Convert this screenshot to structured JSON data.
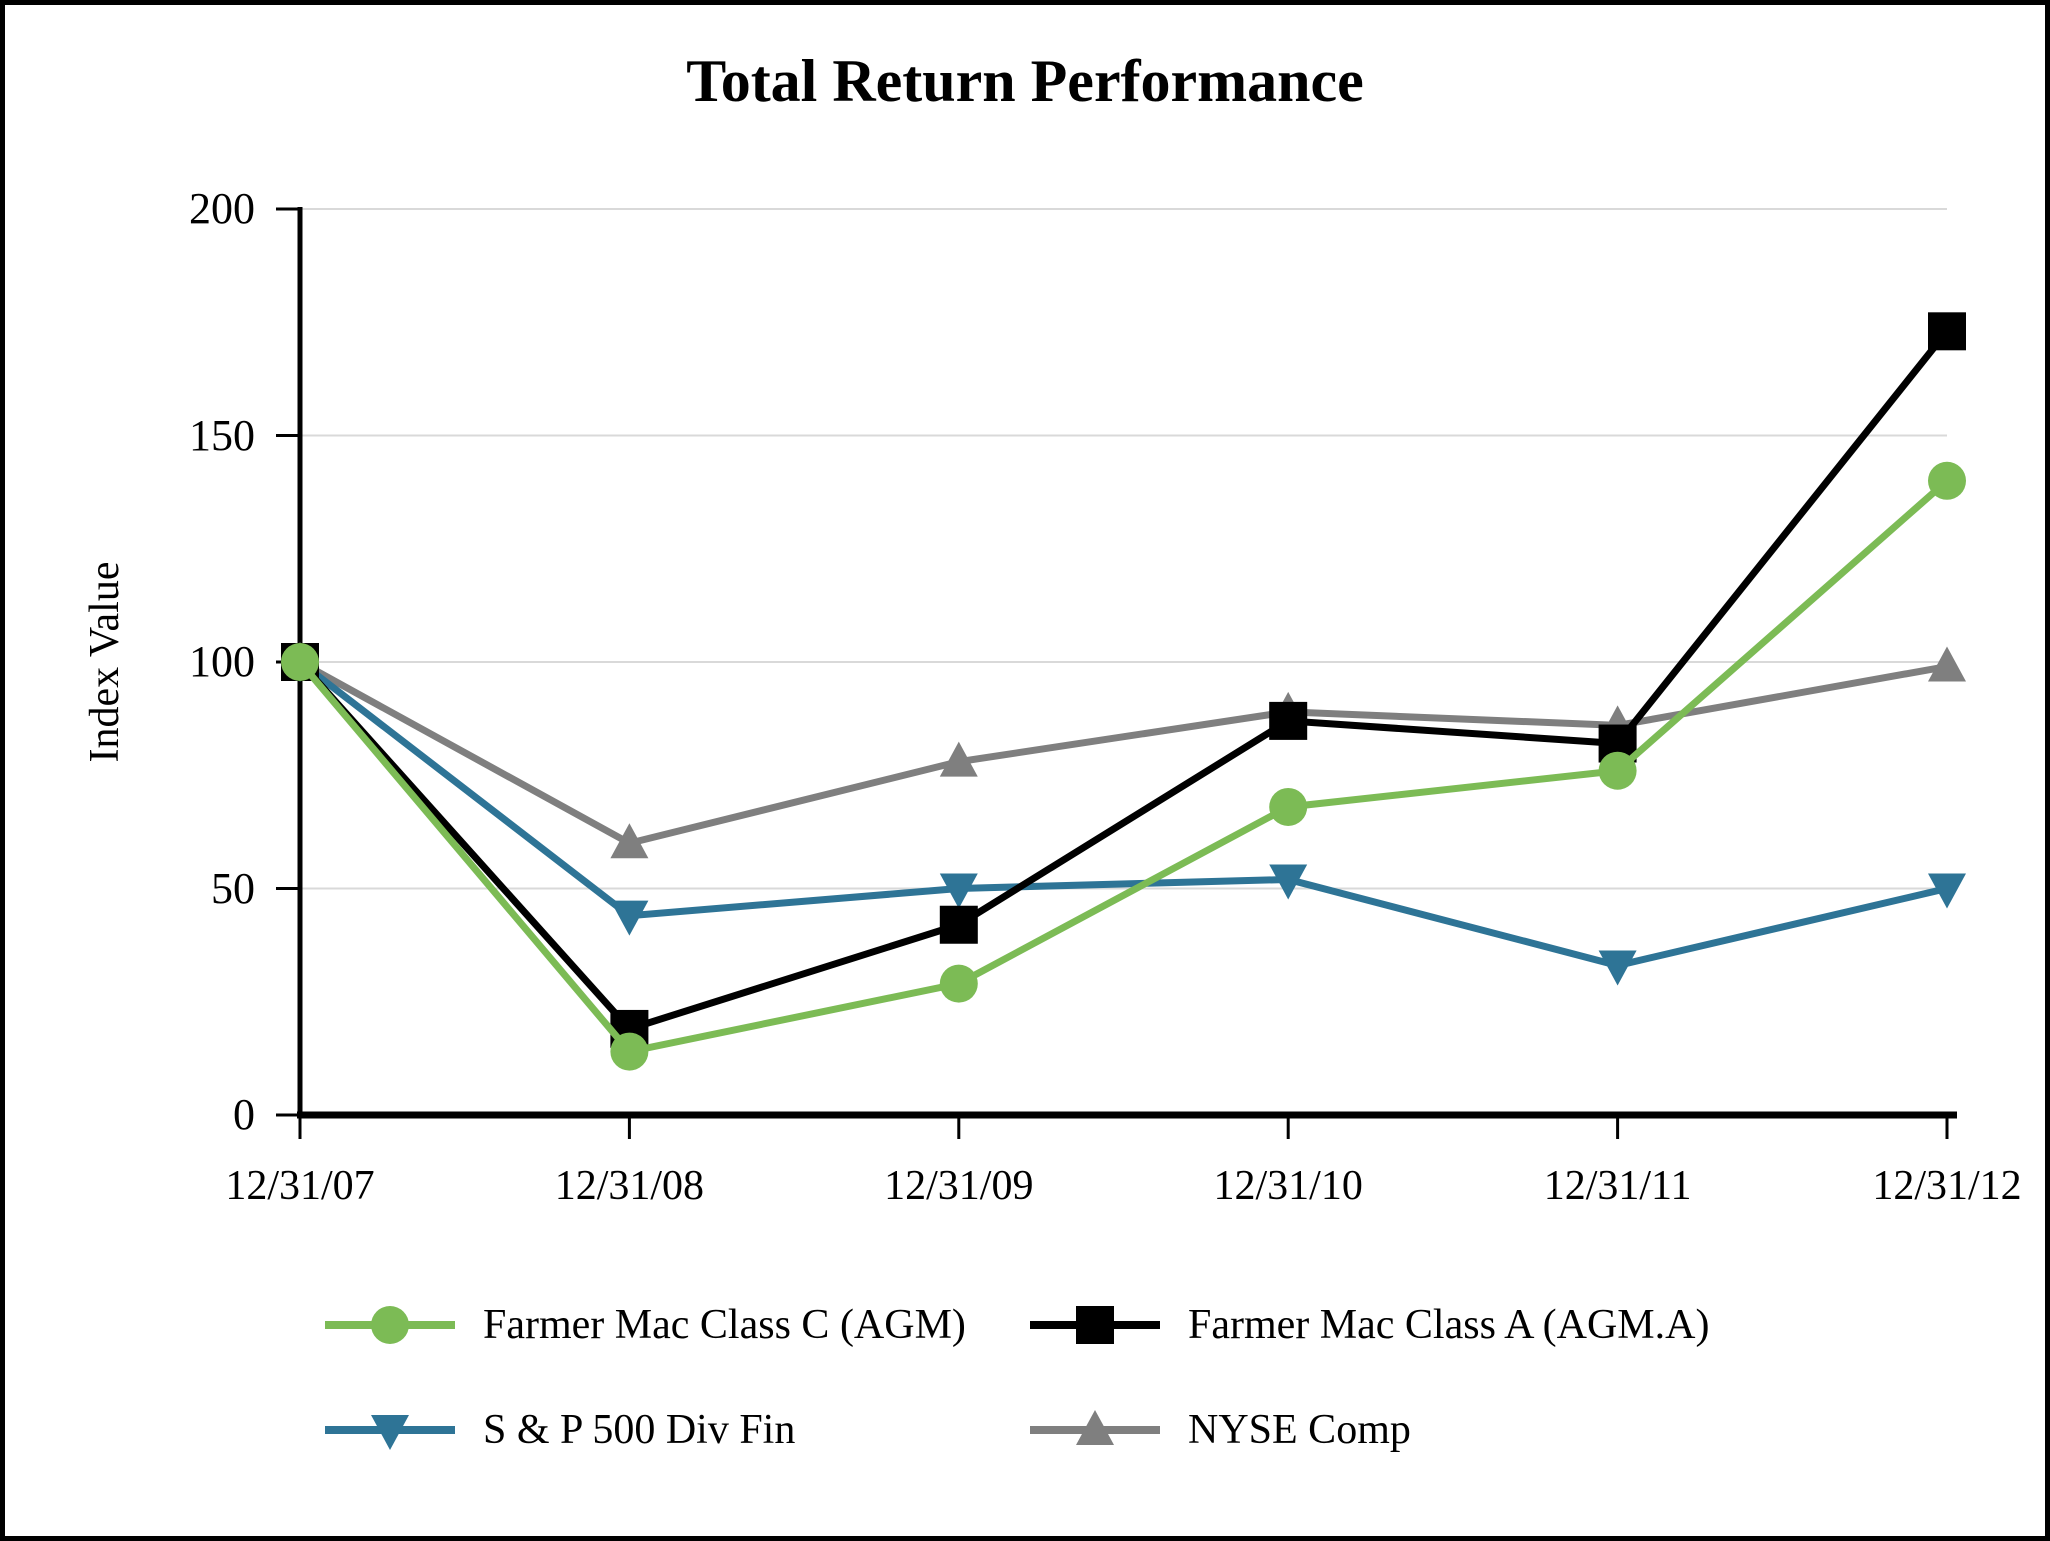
{
  "page": {
    "border_color": "#000000",
    "background_color": "#FFFFFF"
  },
  "chart_data": {
    "type": "line",
    "title": "Total Return Performance",
    "xlabel": "",
    "ylabel": "Index Value",
    "ylim": [
      0,
      200
    ],
    "y_ticks": [
      0,
      50,
      100,
      150,
      200
    ],
    "grid": true,
    "gridline_color": "#D9D9D9",
    "axis_color": "#000000",
    "legend_position": "bottom",
    "categories": [
      "12/31/07",
      "12/31/08",
      "12/31/09",
      "12/31/10",
      "12/31/11",
      "12/31/12"
    ],
    "series": [
      {
        "name": "Farmer Mac Class C (AGM)",
        "marker": "circle",
        "color": "#7CBB55",
        "values": [
          100,
          14,
          29,
          68,
          76,
          140
        ]
      },
      {
        "name": "Farmer Mac Class A (AGM.A)",
        "marker": "square",
        "color": "#000000",
        "values": [
          100,
          19,
          42,
          87,
          82,
          173
        ]
      },
      {
        "name": "S & P 500 Div Fin",
        "marker": "triangle-down",
        "color": "#2E7496",
        "values": [
          100,
          44,
          50,
          52,
          33,
          50
        ]
      },
      {
        "name": "NYSE Comp",
        "marker": "triangle-up",
        "color": "#7F7F7F",
        "values": [
          100,
          60,
          78,
          89,
          86,
          99
        ]
      }
    ]
  }
}
